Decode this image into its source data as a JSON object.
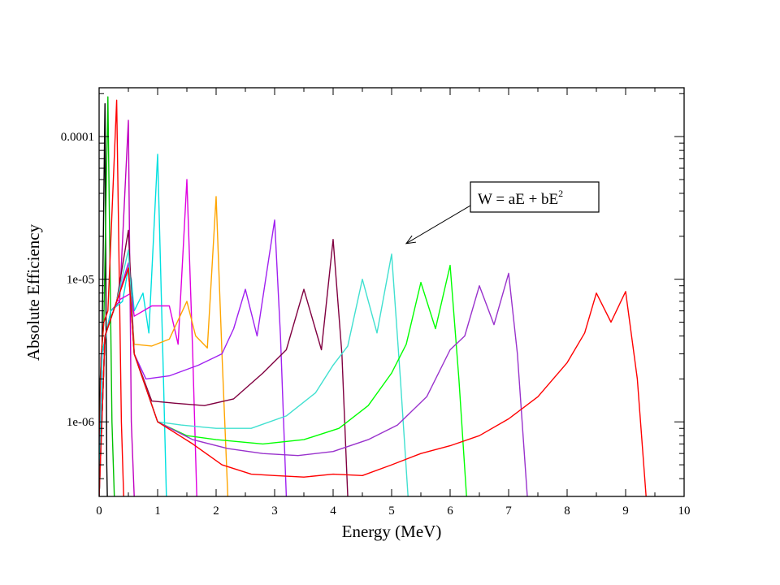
{
  "chart_data": {
    "type": "line",
    "xlabel": "Energy (MeV)",
    "ylabel": "Absolute Efficiency",
    "xlim": [
      0,
      10
    ],
    "ylim": [
      3e-07,
      0.00022
    ],
    "yscale": "log",
    "grid": false,
    "legend": "none",
    "x_ticks": [
      {
        "value": 0,
        "label": "0"
      },
      {
        "value": 1,
        "label": "1"
      },
      {
        "value": 2,
        "label": "2"
      },
      {
        "value": 3,
        "label": "3"
      },
      {
        "value": 4,
        "label": "4"
      },
      {
        "value": 5,
        "label": "5"
      },
      {
        "value": 6,
        "label": "6"
      },
      {
        "value": 7,
        "label": "7"
      },
      {
        "value": 8,
        "label": "8"
      },
      {
        "value": 9,
        "label": "9"
      },
      {
        "value": 10,
        "label": "10"
      }
    ],
    "y_ticks": [
      {
        "value": 1e-06,
        "label": "1e-06"
      },
      {
        "value": 1e-05,
        "label": "1e-05"
      },
      {
        "value": 0.0001,
        "label": "0.0001"
      }
    ],
    "annotation": {
      "text_main": "W = aE + bE",
      "text_sup": "2",
      "arrow_target": [
        5.25,
        1.78e-05
      ]
    },
    "series": [
      {
        "color": "#000000",
        "points": [
          [
            0,
            3e-07
          ],
          [
            0.02,
            2e-06
          ],
          [
            0.05,
            3.5e-06
          ],
          [
            0.1,
            0.00017
          ],
          [
            0.13,
            5e-07
          ],
          [
            0.14,
            3e-07
          ]
        ]
      },
      {
        "color": "#00c000",
        "points": [
          [
            0,
            3e-07
          ],
          [
            0.03,
            2.6e-06
          ],
          [
            0.08,
            5e-06
          ],
          [
            0.15,
            0.00019
          ],
          [
            0.22,
            1e-06
          ],
          [
            0.26,
            3e-07
          ]
        ]
      },
      {
        "color": "#ff0000",
        "points": [
          [
            0,
            3e-07
          ],
          [
            0.03,
            2.8e-06
          ],
          [
            0.08,
            5e-06
          ],
          [
            0.15,
            6e-06
          ],
          [
            0.3,
            0.00018
          ],
          [
            0.38,
            1e-06
          ],
          [
            0.42,
            3e-07
          ]
        ]
      },
      {
        "color": "#c000c0",
        "points": [
          [
            0,
            3e-07
          ],
          [
            0.05,
            3e-06
          ],
          [
            0.2,
            6e-06
          ],
          [
            0.35,
            7e-06
          ],
          [
            0.5,
            0.00013
          ],
          [
            0.55,
            1e-06
          ],
          [
            0.6,
            3e-07
          ]
        ]
      },
      {
        "color": "#00e0e0",
        "points": [
          [
            0,
            3e-07
          ],
          [
            0.05,
            3e-06
          ],
          [
            0.2,
            6e-06
          ],
          [
            0.4,
            7e-06
          ],
          [
            0.5,
            1.2e-05
          ],
          [
            0.55,
            1e-05
          ],
          [
            0.6,
            6e-06
          ],
          [
            0.75,
            8e-06
          ],
          [
            0.85,
            4.2e-06
          ],
          [
            1.0,
            7.5e-05
          ],
          [
            1.1,
            2e-06
          ],
          [
            1.15,
            3e-07
          ]
        ]
      },
      {
        "color": "#e000e0",
        "points": [
          [
            0,
            3e-07
          ],
          [
            0.1,
            4e-06
          ],
          [
            0.3,
            7e-06
          ],
          [
            0.55,
            8e-06
          ],
          [
            0.6,
            5.5e-06
          ],
          [
            0.9,
            6.5e-06
          ],
          [
            1.2,
            6.5e-06
          ],
          [
            1.35,
            3.5e-06
          ],
          [
            1.5,
            5e-05
          ],
          [
            1.6,
            3e-06
          ],
          [
            1.67,
            3e-07
          ]
        ]
      },
      {
        "color": "#ffa500",
        "points": [
          [
            0,
            3e-07
          ],
          [
            0.1,
            4e-06
          ],
          [
            0.3,
            7e-06
          ],
          [
            0.5,
            1.2e-05
          ],
          [
            0.6,
            3.5e-06
          ],
          [
            0.9,
            3.4e-06
          ],
          [
            1.2,
            3.8e-06
          ],
          [
            1.5,
            7e-06
          ],
          [
            1.65,
            4e-06
          ],
          [
            1.85,
            3.3e-06
          ],
          [
            2.0,
            3.8e-05
          ],
          [
            2.1,
            3e-06
          ],
          [
            2.2,
            3e-07
          ]
        ]
      },
      {
        "color": "#a020f0",
        "points": [
          [
            0,
            3e-07
          ],
          [
            0.1,
            4e-06
          ],
          [
            0.3,
            7e-06
          ],
          [
            0.5,
            1.3e-05
          ],
          [
            0.6,
            3e-06
          ],
          [
            0.8,
            2e-06
          ],
          [
            1.2,
            2.1e-06
          ],
          [
            1.7,
            2.5e-06
          ],
          [
            2.1,
            3e-06
          ],
          [
            2.3,
            4.5e-06
          ],
          [
            2.5,
            8.5e-06
          ],
          [
            2.7,
            4e-06
          ],
          [
            3.0,
            2.6e-05
          ],
          [
            3.1,
            4e-06
          ],
          [
            3.2,
            3e-07
          ]
        ]
      },
      {
        "color": "#800040",
        "points": [
          [
            0,
            3e-07
          ],
          [
            0.1,
            4e-06
          ],
          [
            0.3,
            7e-06
          ],
          [
            0.5,
            2.2e-05
          ],
          [
            0.6,
            3e-06
          ],
          [
            0.9,
            1.4e-06
          ],
          [
            1.3,
            1.35e-06
          ],
          [
            1.8,
            1.3e-06
          ],
          [
            2.3,
            1.45e-06
          ],
          [
            2.8,
            2.2e-06
          ],
          [
            3.2,
            3.2e-06
          ],
          [
            3.5,
            8.5e-06
          ],
          [
            3.8,
            3.2e-06
          ],
          [
            4.0,
            1.9e-05
          ],
          [
            4.15,
            3e-06
          ],
          [
            4.25,
            3e-07
          ]
        ]
      },
      {
        "color": "#40e0d0",
        "points": [
          [
            0,
            3e-07
          ],
          [
            0.1,
            4e-06
          ],
          [
            0.3,
            7e-06
          ],
          [
            0.5,
            1.6e-05
          ],
          [
            0.6,
            3e-06
          ],
          [
            1.0,
            1e-06
          ],
          [
            1.4,
            9.5e-07
          ],
          [
            2.0,
            9e-07
          ],
          [
            2.6,
            9e-07
          ],
          [
            3.2,
            1.1e-06
          ],
          [
            3.7,
            1.6e-06
          ],
          [
            4.0,
            2.5e-06
          ],
          [
            4.25,
            3.4e-06
          ],
          [
            4.5,
            1e-05
          ],
          [
            4.75,
            4.2e-06
          ],
          [
            5.0,
            1.5e-05
          ],
          [
            5.15,
            2e-06
          ],
          [
            5.28,
            3e-07
          ]
        ]
      },
      {
        "color": "#00ff00",
        "points": [
          [
            0,
            3e-07
          ],
          [
            0.1,
            4e-06
          ],
          [
            0.3,
            7e-06
          ],
          [
            0.5,
            1.2e-05
          ],
          [
            0.6,
            3e-06
          ],
          [
            1.0,
            1e-06
          ],
          [
            1.5,
            8e-07
          ],
          [
            2.0,
            7.5e-07
          ],
          [
            2.8,
            7e-07
          ],
          [
            3.5,
            7.5e-07
          ],
          [
            4.1,
            9e-07
          ],
          [
            4.6,
            1.3e-06
          ],
          [
            5.0,
            2.2e-06
          ],
          [
            5.25,
            3.5e-06
          ],
          [
            5.5,
            9.5e-06
          ],
          [
            5.75,
            4.5e-06
          ],
          [
            6.0,
            1.25e-05
          ],
          [
            6.15,
            2e-06
          ],
          [
            6.28,
            3e-07
          ]
        ]
      },
      {
        "color": "#9932cc",
        "points": [
          [
            0,
            3e-07
          ],
          [
            0.1,
            4e-06
          ],
          [
            0.3,
            7e-06
          ],
          [
            0.5,
            1.2e-05
          ],
          [
            0.6,
            3e-06
          ],
          [
            1.0,
            1e-06
          ],
          [
            1.6,
            7.5e-07
          ],
          [
            2.2,
            6.5e-07
          ],
          [
            2.8,
            6e-07
          ],
          [
            3.4,
            5.8e-07
          ],
          [
            4.0,
            6.2e-07
          ],
          [
            4.6,
            7.5e-07
          ],
          [
            5.1,
            9.5e-07
          ],
          [
            5.6,
            1.5e-06
          ],
          [
            6.0,
            3.2e-06
          ],
          [
            6.25,
            4e-06
          ],
          [
            6.5,
            9e-06
          ],
          [
            6.75,
            4.8e-06
          ],
          [
            7.0,
            1.1e-05
          ],
          [
            7.15,
            3e-06
          ],
          [
            7.32,
            3e-07
          ]
        ]
      },
      {
        "color": "#ff0000",
        "points": [
          [
            0,
            3e-07
          ],
          [
            0.1,
            4e-06
          ],
          [
            0.3,
            7e-06
          ],
          [
            0.5,
            1.2e-05
          ],
          [
            0.6,
            3e-06
          ],
          [
            1.0,
            1e-06
          ],
          [
            1.6,
            7e-07
          ],
          [
            2.1,
            5e-07
          ],
          [
            2.6,
            4.3e-07
          ],
          [
            3.0,
            4.2e-07
          ],
          [
            3.5,
            4.1e-07
          ],
          [
            4.0,
            4.3e-07
          ],
          [
            4.5,
            4.2e-07
          ],
          [
            5.0,
            5e-07
          ],
          [
            5.5,
            6e-07
          ],
          [
            6.0,
            6.8e-07
          ],
          [
            6.5,
            8e-07
          ],
          [
            7.0,
            1.05e-06
          ],
          [
            7.5,
            1.5e-06
          ],
          [
            8.0,
            2.6e-06
          ],
          [
            8.3,
            4.2e-06
          ],
          [
            8.5,
            8e-06
          ],
          [
            8.75,
            5e-06
          ],
          [
            9.0,
            8.2e-06
          ],
          [
            9.2,
            2e-06
          ],
          [
            9.35,
            3e-07
          ]
        ]
      }
    ]
  }
}
